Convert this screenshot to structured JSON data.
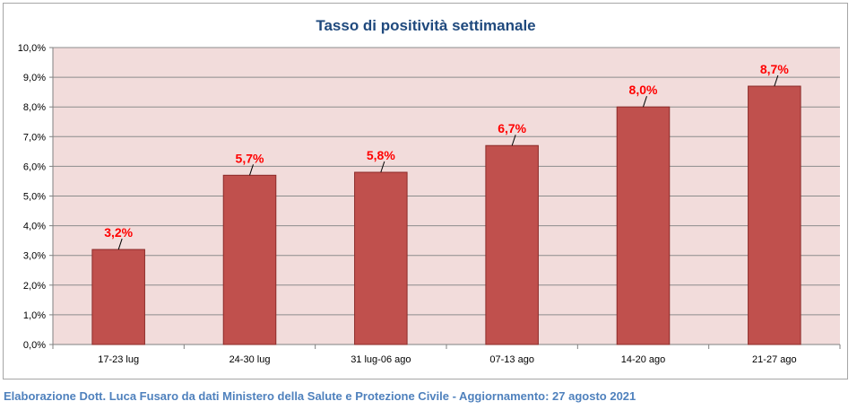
{
  "chart_data": {
    "type": "bar",
    "title": "Tasso di positività settimanale",
    "categories": [
      "17-23 lug",
      "24-30 lug",
      "31 lug-06 ago",
      "07-13 ago",
      "14-20 ago",
      "21-27 ago"
    ],
    "values": [
      3.2,
      5.7,
      5.8,
      6.7,
      8.0,
      8.7
    ],
    "data_labels": [
      "3,2%",
      "5,7%",
      "5,8%",
      "6,7%",
      "8,0%",
      "8,7%"
    ],
    "ylim": [
      0,
      10
    ],
    "yticks": [
      0,
      1,
      2,
      3,
      4,
      5,
      6,
      7,
      8,
      9,
      10
    ],
    "ytick_labels": [
      "0,0%",
      "1,0%",
      "2,0%",
      "3,0%",
      "4,0%",
      "5,0%",
      "6,0%",
      "7,0%",
      "8,0%",
      "9,0%",
      "10,0%"
    ],
    "xlabel": "",
    "ylabel": "",
    "grid": true,
    "legend": "none"
  },
  "colors": {
    "bar_fill": "#c0504d",
    "bar_stroke": "#8c2b29",
    "plot_bg": "#f2dcdb",
    "grid": "#8c8c8c",
    "title": "#1f497d",
    "data_label": "#ff0000",
    "caption": "#4f81bd"
  },
  "caption": "Elaborazione Dott. Luca Fusaro da dati Ministero della Salute e Protezione Civile - Aggiornamento: 27 agosto 2021"
}
